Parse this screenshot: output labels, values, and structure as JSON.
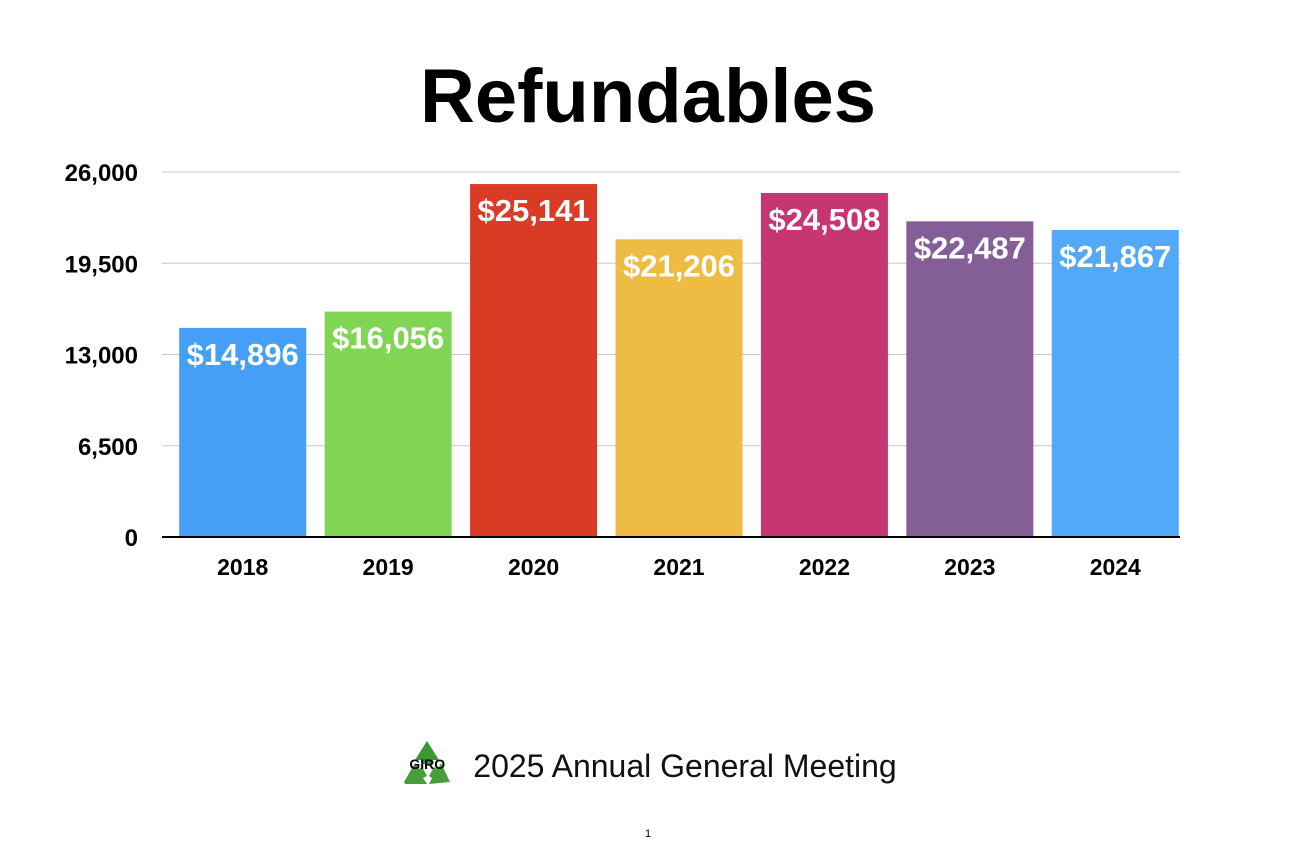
{
  "chart_data": {
    "type": "bar",
    "title": "Refundables",
    "categories": [
      "2018",
      "2019",
      "2020",
      "2021",
      "2022",
      "2023",
      "2024"
    ],
    "values": [
      14896,
      16056,
      25141,
      21206,
      24508,
      22487,
      21867
    ],
    "data_labels": [
      "$14,896",
      "$16,056",
      "$25,141",
      "$21,206",
      "$24,508",
      "$22,487",
      "$21,867"
    ],
    "colors": [
      "#459ff7",
      "#80d654",
      "#d93b24",
      "#eebc42",
      "#c63672",
      "#845f97",
      "#52a9f7"
    ],
    "y_ticks": [
      0,
      6500,
      13000,
      19500,
      26000
    ],
    "y_tick_labels": [
      "0",
      "6,500",
      "13,000",
      "19,500",
      "26,000"
    ],
    "ylim": [
      0,
      26000
    ],
    "grid": true,
    "legend": "none"
  },
  "footer": {
    "logo_text": "GIRO",
    "logo_icon": "recycle-icon",
    "logo_color": "#3a9a2f",
    "meeting": "2025 Annual General Meeting",
    "page_number": "1"
  }
}
